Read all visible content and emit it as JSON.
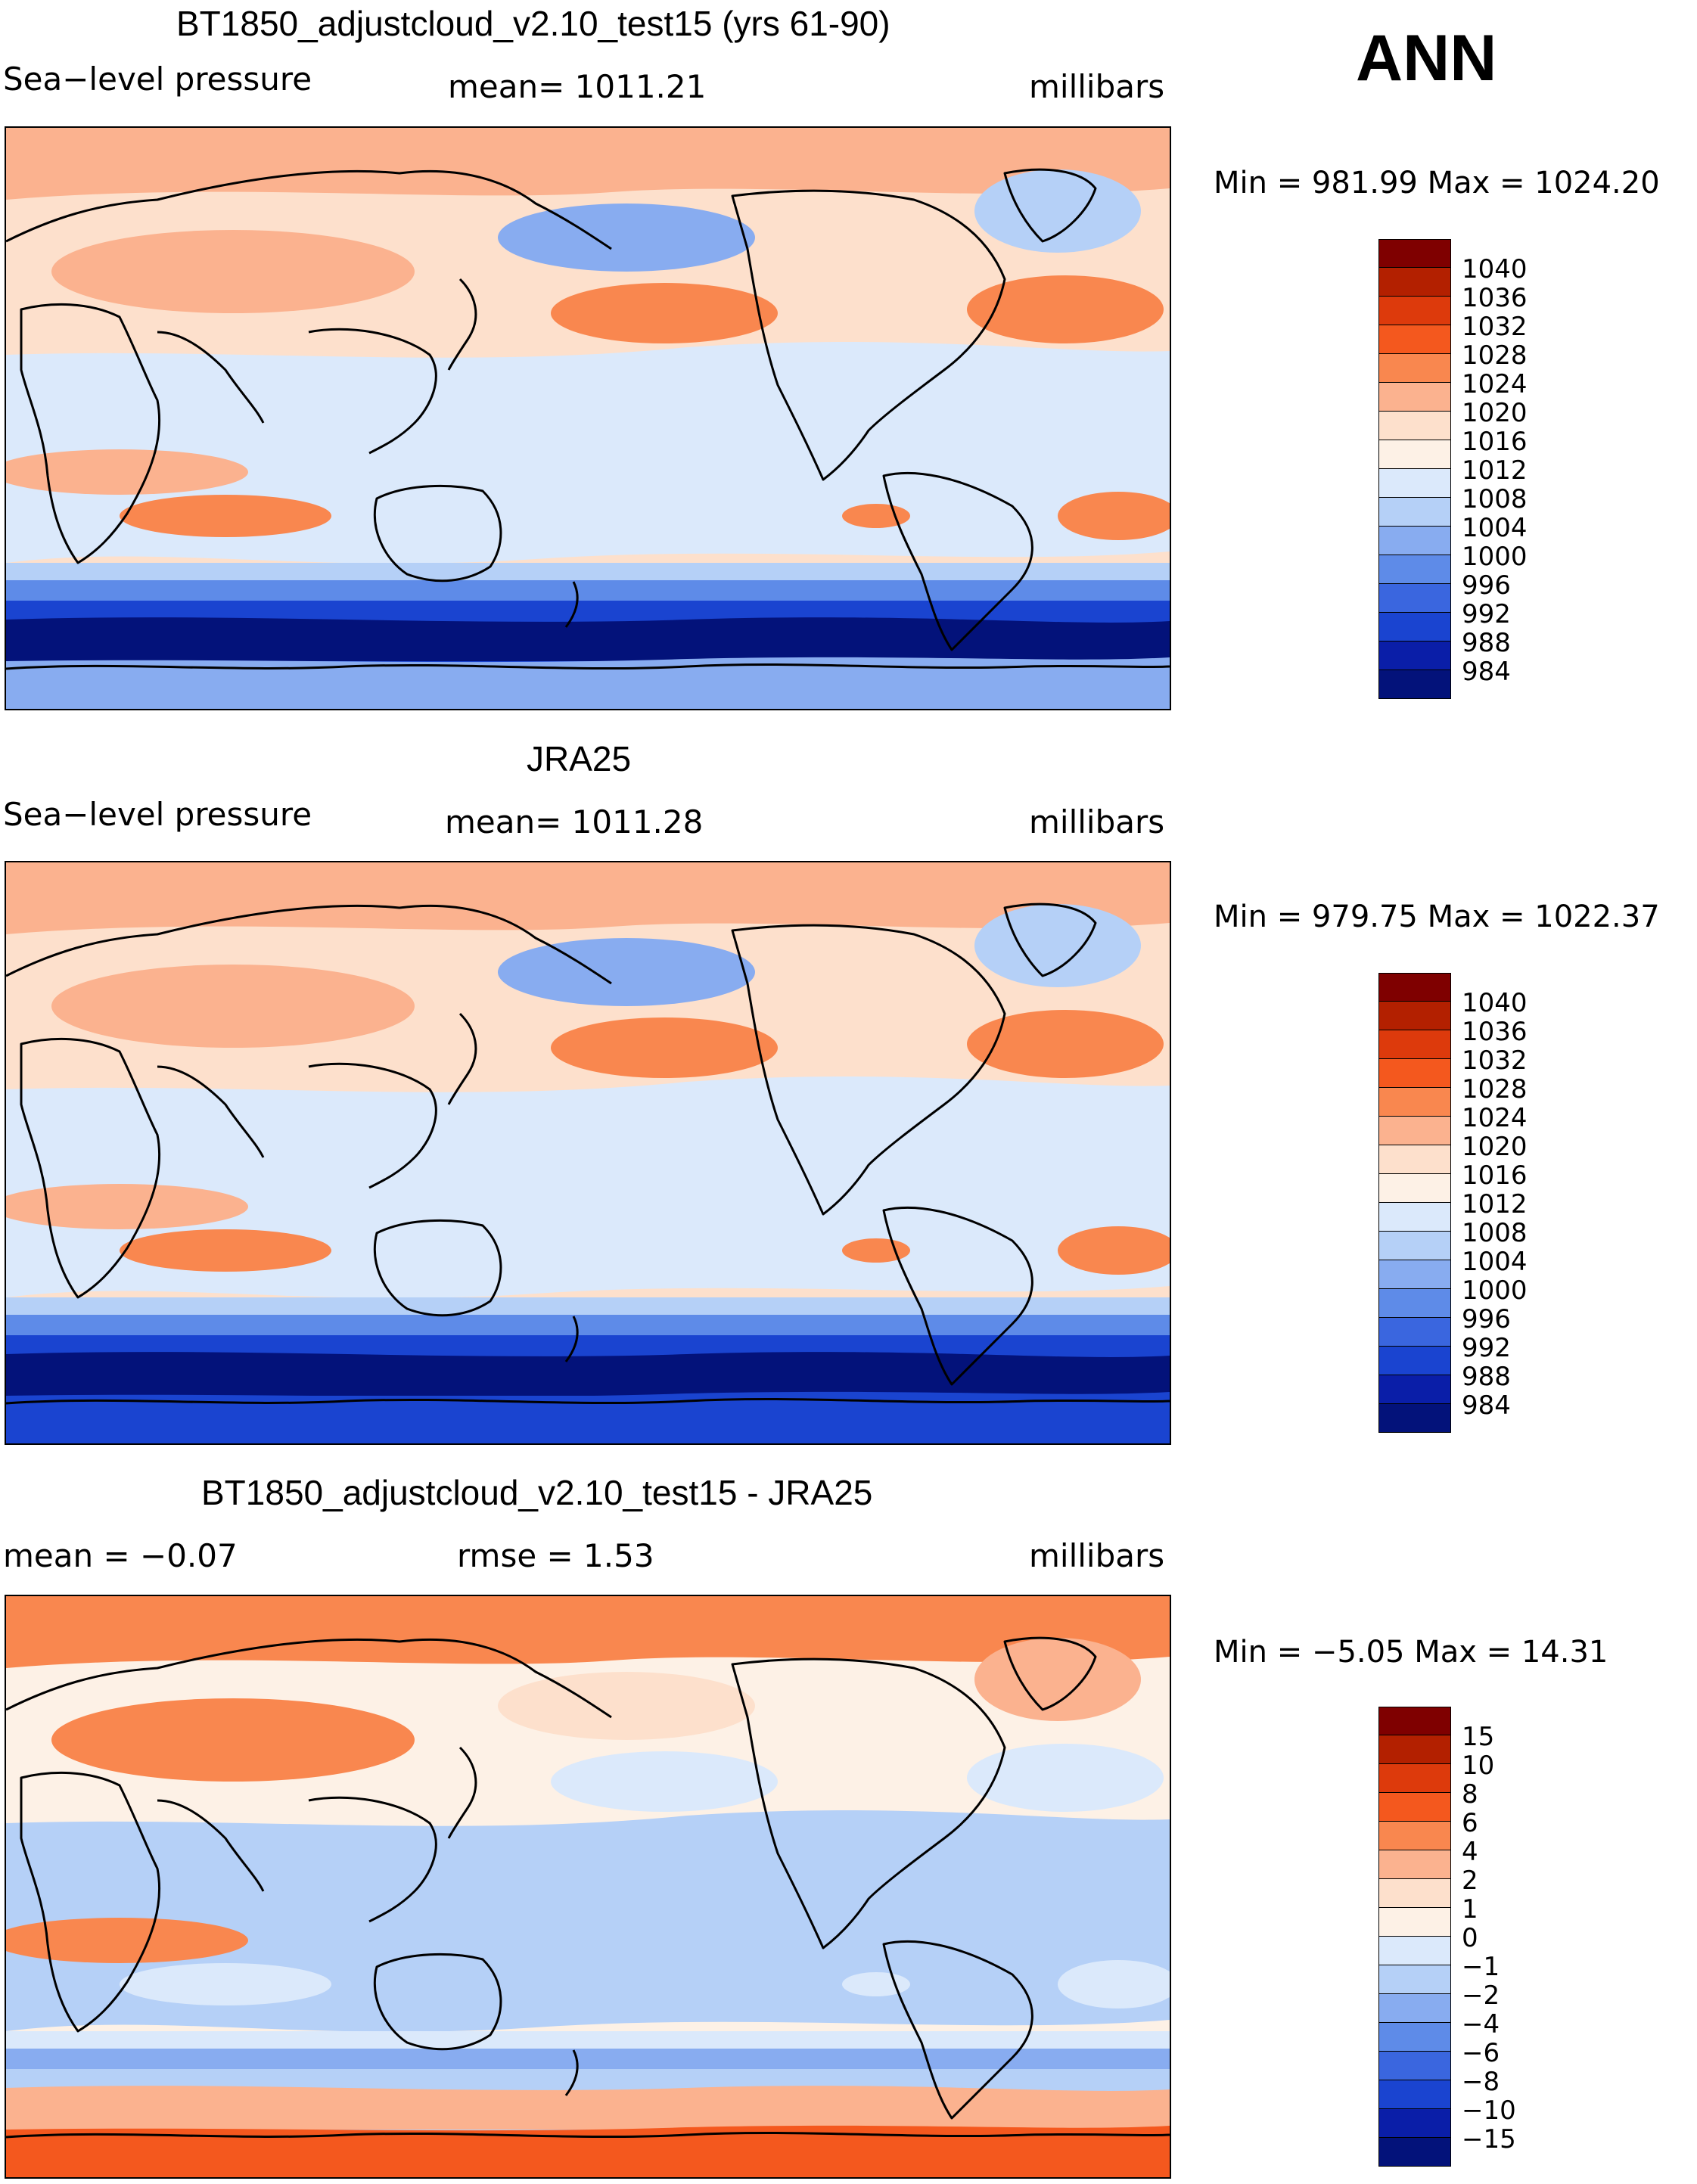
{
  "season": "ANN",
  "panels": [
    {
      "id": "model",
      "title": "BT1850_adjustcloud_v2.10_test15 (yrs 61-90)",
      "left_label": "Sea−level pressure",
      "center_label": "mean=  1011.21",
      "units": "millibars",
      "minmax": "Min  =  981.99  Max  =  1024.20",
      "colorbar": {
        "labels": [
          "1040",
          "1036",
          "1032",
          "1028",
          "1024",
          "1020",
          "1016",
          "1012",
          "1008",
          "1004",
          "1000",
          "996",
          "992",
          "988",
          "984"
        ],
        "colors": [
          "#7f0000",
          "#b32000",
          "#dd3a0c",
          "#f4581e",
          "#f9874f",
          "#fbb28f",
          "#fde0cc",
          "#fdf1e6",
          "#dbe9fb",
          "#b5d0f7",
          "#88acf0",
          "#5e8be8",
          "#3a66df",
          "#1a44d0",
          "#0a1ea8",
          "#03127a"
        ]
      },
      "palette": {
        "bg": "#fde0cc",
        "north_high": "#fbb28f",
        "aleutian": "#88acf0",
        "icelandic": "#b5d0f7",
        "tropics": "#dbe9fb",
        "subtrop_high": "#f9874f",
        "southern_ocean": [
          "#b5d0f7",
          "#5e8be8",
          "#1a44d0",
          "#03127a"
        ],
        "antarctica": "#88acf0"
      }
    },
    {
      "id": "obs",
      "title": "JRA25",
      "left_label": "Sea−level pressure",
      "center_label": "mean=  1011.28",
      "units": "millibars",
      "minmax": "Min  =  979.75  Max  =  1022.37",
      "colorbar": {
        "labels": [
          "1040",
          "1036",
          "1032",
          "1028",
          "1024",
          "1020",
          "1016",
          "1012",
          "1008",
          "1004",
          "1000",
          "996",
          "992",
          "988",
          "984"
        ],
        "colors": [
          "#7f0000",
          "#b32000",
          "#dd3a0c",
          "#f4581e",
          "#f9874f",
          "#fbb28f",
          "#fde0cc",
          "#fdf1e6",
          "#dbe9fb",
          "#b5d0f7",
          "#88acf0",
          "#5e8be8",
          "#3a66df",
          "#1a44d0",
          "#0a1ea8",
          "#03127a"
        ]
      },
      "palette": {
        "bg": "#fde0cc",
        "north_high": "#fbb28f",
        "aleutian": "#88acf0",
        "icelandic": "#b5d0f7",
        "tropics": "#dbe9fb",
        "subtrop_high": "#f9874f",
        "southern_ocean": [
          "#b5d0f7",
          "#5e8be8",
          "#1a44d0",
          "#03127a"
        ],
        "antarctica": "#1a44d0"
      }
    },
    {
      "id": "diff",
      "title": "BT1850_adjustcloud_v2.10_test15 - JRA25",
      "left_label": "mean =    −0.07",
      "center_label": "rmse =     1.53",
      "units": "millibars",
      "minmax": "Min  =    −5.05  Max  =    14.31",
      "colorbar": {
        "labels": [
          "15",
          "10",
          "8",
          "6",
          "4",
          "2",
          "1",
          "0",
          "−1",
          "−2",
          "−4",
          "−6",
          "−8",
          "−10",
          "−15"
        ],
        "colors": [
          "#7f0000",
          "#b32000",
          "#dd3a0c",
          "#f4581e",
          "#f9874f",
          "#fbb28f",
          "#fde0cc",
          "#fdf1e6",
          "#dbe9fb",
          "#b5d0f7",
          "#88acf0",
          "#5e8be8",
          "#3a66df",
          "#1a44d0",
          "#0a1ea8",
          "#03127a"
        ]
      },
      "palette": {
        "bg": "#fdf1e6",
        "north_high": "#f9874f",
        "aleutian": "#fde0cc",
        "icelandic": "#fbb28f",
        "tropics": "#b5d0f7",
        "subtrop_high": "#dbe9fb",
        "southern_ocean": [
          "#dbe9fb",
          "#88acf0",
          "#b5d0f7",
          "#fbb28f"
        ],
        "antarctica": "#f4581e"
      }
    }
  ]
}
